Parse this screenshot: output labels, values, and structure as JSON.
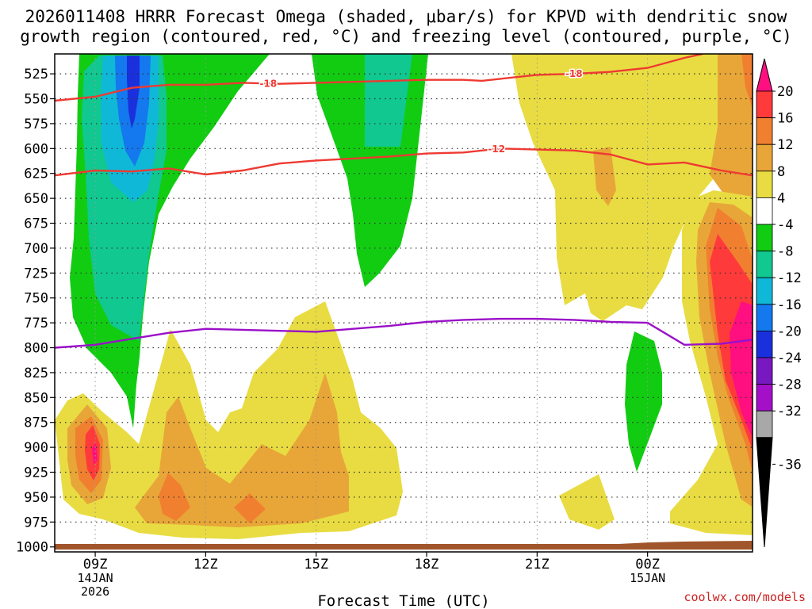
{
  "chart_data": {
    "type": "heatmap",
    "title_line1": "2026011408 HRRR Forecast Omega (shaded, μbar/s) for KPVD with dendritic snow",
    "title_line2": "growth region (contoured, red, °C) and freezing level (contoured, purple, °C)",
    "xlabel": "Forecast Time (UTC)",
    "credit": "coolwx.com/models",
    "x_range_hours": [
      7.9,
      26.85
    ],
    "y_range_hpa": [
      505,
      1005
    ],
    "x_ticks": [
      {
        "hour": 9,
        "label": "09Z",
        "sub1": "14JAN",
        "sub2": "2026"
      },
      {
        "hour": 12,
        "label": "12Z",
        "sub1": "",
        "sub2": ""
      },
      {
        "hour": 15,
        "label": "15Z",
        "sub1": "",
        "sub2": ""
      },
      {
        "hour": 18,
        "label": "18Z",
        "sub1": "",
        "sub2": ""
      },
      {
        "hour": 21,
        "label": "21Z",
        "sub1": "",
        "sub2": ""
      },
      {
        "hour": 24,
        "label": "00Z",
        "sub1": "15JAN",
        "sub2": ""
      }
    ],
    "y_ticks": [
      525,
      550,
      575,
      600,
      625,
      650,
      675,
      700,
      725,
      750,
      775,
      800,
      825,
      850,
      875,
      900,
      925,
      950,
      975,
      1000
    ],
    "colorbar": {
      "labels": [
        "20",
        "16",
        "12",
        "8",
        "4",
        "-4",
        "-8",
        "-12",
        "-16",
        "-20",
        "-24",
        "-28",
        "-32",
        "-36"
      ],
      "colors": [
        "#ff0f7f",
        "#ff3a3a",
        "#f08030",
        "#e8a638",
        "#e8dc42",
        "#ffffff",
        "#12cc12",
        "#10c890",
        "#10b8d8",
        "#1478ee",
        "#1a30dc",
        "#7818c0",
        "#a410c8",
        "#a8a8a8"
      ]
    },
    "series": [
      {
        "name": "-18 °C isotherm (DGZ)",
        "color": "#ee3a32",
        "label": "-18",
        "label_hours": [
          13.7,
          22.0
        ],
        "points": [
          [
            7.9,
            552
          ],
          [
            9,
            548
          ],
          [
            10,
            539
          ],
          [
            11,
            536
          ],
          [
            12,
            536
          ],
          [
            13,
            534
          ],
          [
            14,
            535
          ],
          [
            15,
            534
          ],
          [
            16,
            533
          ],
          [
            17,
            532
          ],
          [
            18,
            531
          ],
          [
            19,
            531
          ],
          [
            19.5,
            532
          ],
          [
            20,
            530
          ],
          [
            21,
            526
          ],
          [
            22,
            525
          ],
          [
            23,
            523
          ],
          [
            24,
            519
          ],
          [
            25,
            509
          ],
          [
            25.5,
            505
          ]
        ]
      },
      {
        "name": "-12 °C isotherm (DGZ)",
        "color": "#ee3a32",
        "label": "-12",
        "label_hours": [
          19.9
        ],
        "points": [
          [
            7.9,
            627
          ],
          [
            9,
            622
          ],
          [
            10,
            623
          ],
          [
            11,
            620
          ],
          [
            12,
            626
          ],
          [
            13,
            622
          ],
          [
            14,
            615
          ],
          [
            15,
            612
          ],
          [
            16,
            610
          ],
          [
            17,
            608
          ],
          [
            18,
            605
          ],
          [
            19,
            604
          ],
          [
            20,
            600
          ],
          [
            21,
            601
          ],
          [
            22,
            602
          ],
          [
            23,
            606
          ],
          [
            24,
            616
          ],
          [
            25,
            614
          ],
          [
            26,
            622
          ],
          [
            26.85,
            627
          ]
        ]
      },
      {
        "name": "0 °C freezing level",
        "color": "#9a10c8",
        "label": "",
        "label_hours": [],
        "points": [
          [
            7.9,
            800
          ],
          [
            9,
            797
          ],
          [
            10,
            791
          ],
          [
            11,
            785
          ],
          [
            12,
            781
          ],
          [
            13,
            782
          ],
          [
            14,
            783
          ],
          [
            15,
            784
          ],
          [
            16,
            781
          ],
          [
            17,
            778
          ],
          [
            18,
            774
          ],
          [
            19,
            772
          ],
          [
            20,
            771
          ],
          [
            21,
            771
          ],
          [
            22,
            772
          ],
          [
            23,
            774
          ],
          [
            24,
            775
          ],
          [
            25,
            797
          ],
          [
            26,
            796
          ],
          [
            26.85,
            792
          ]
        ]
      }
    ]
  }
}
